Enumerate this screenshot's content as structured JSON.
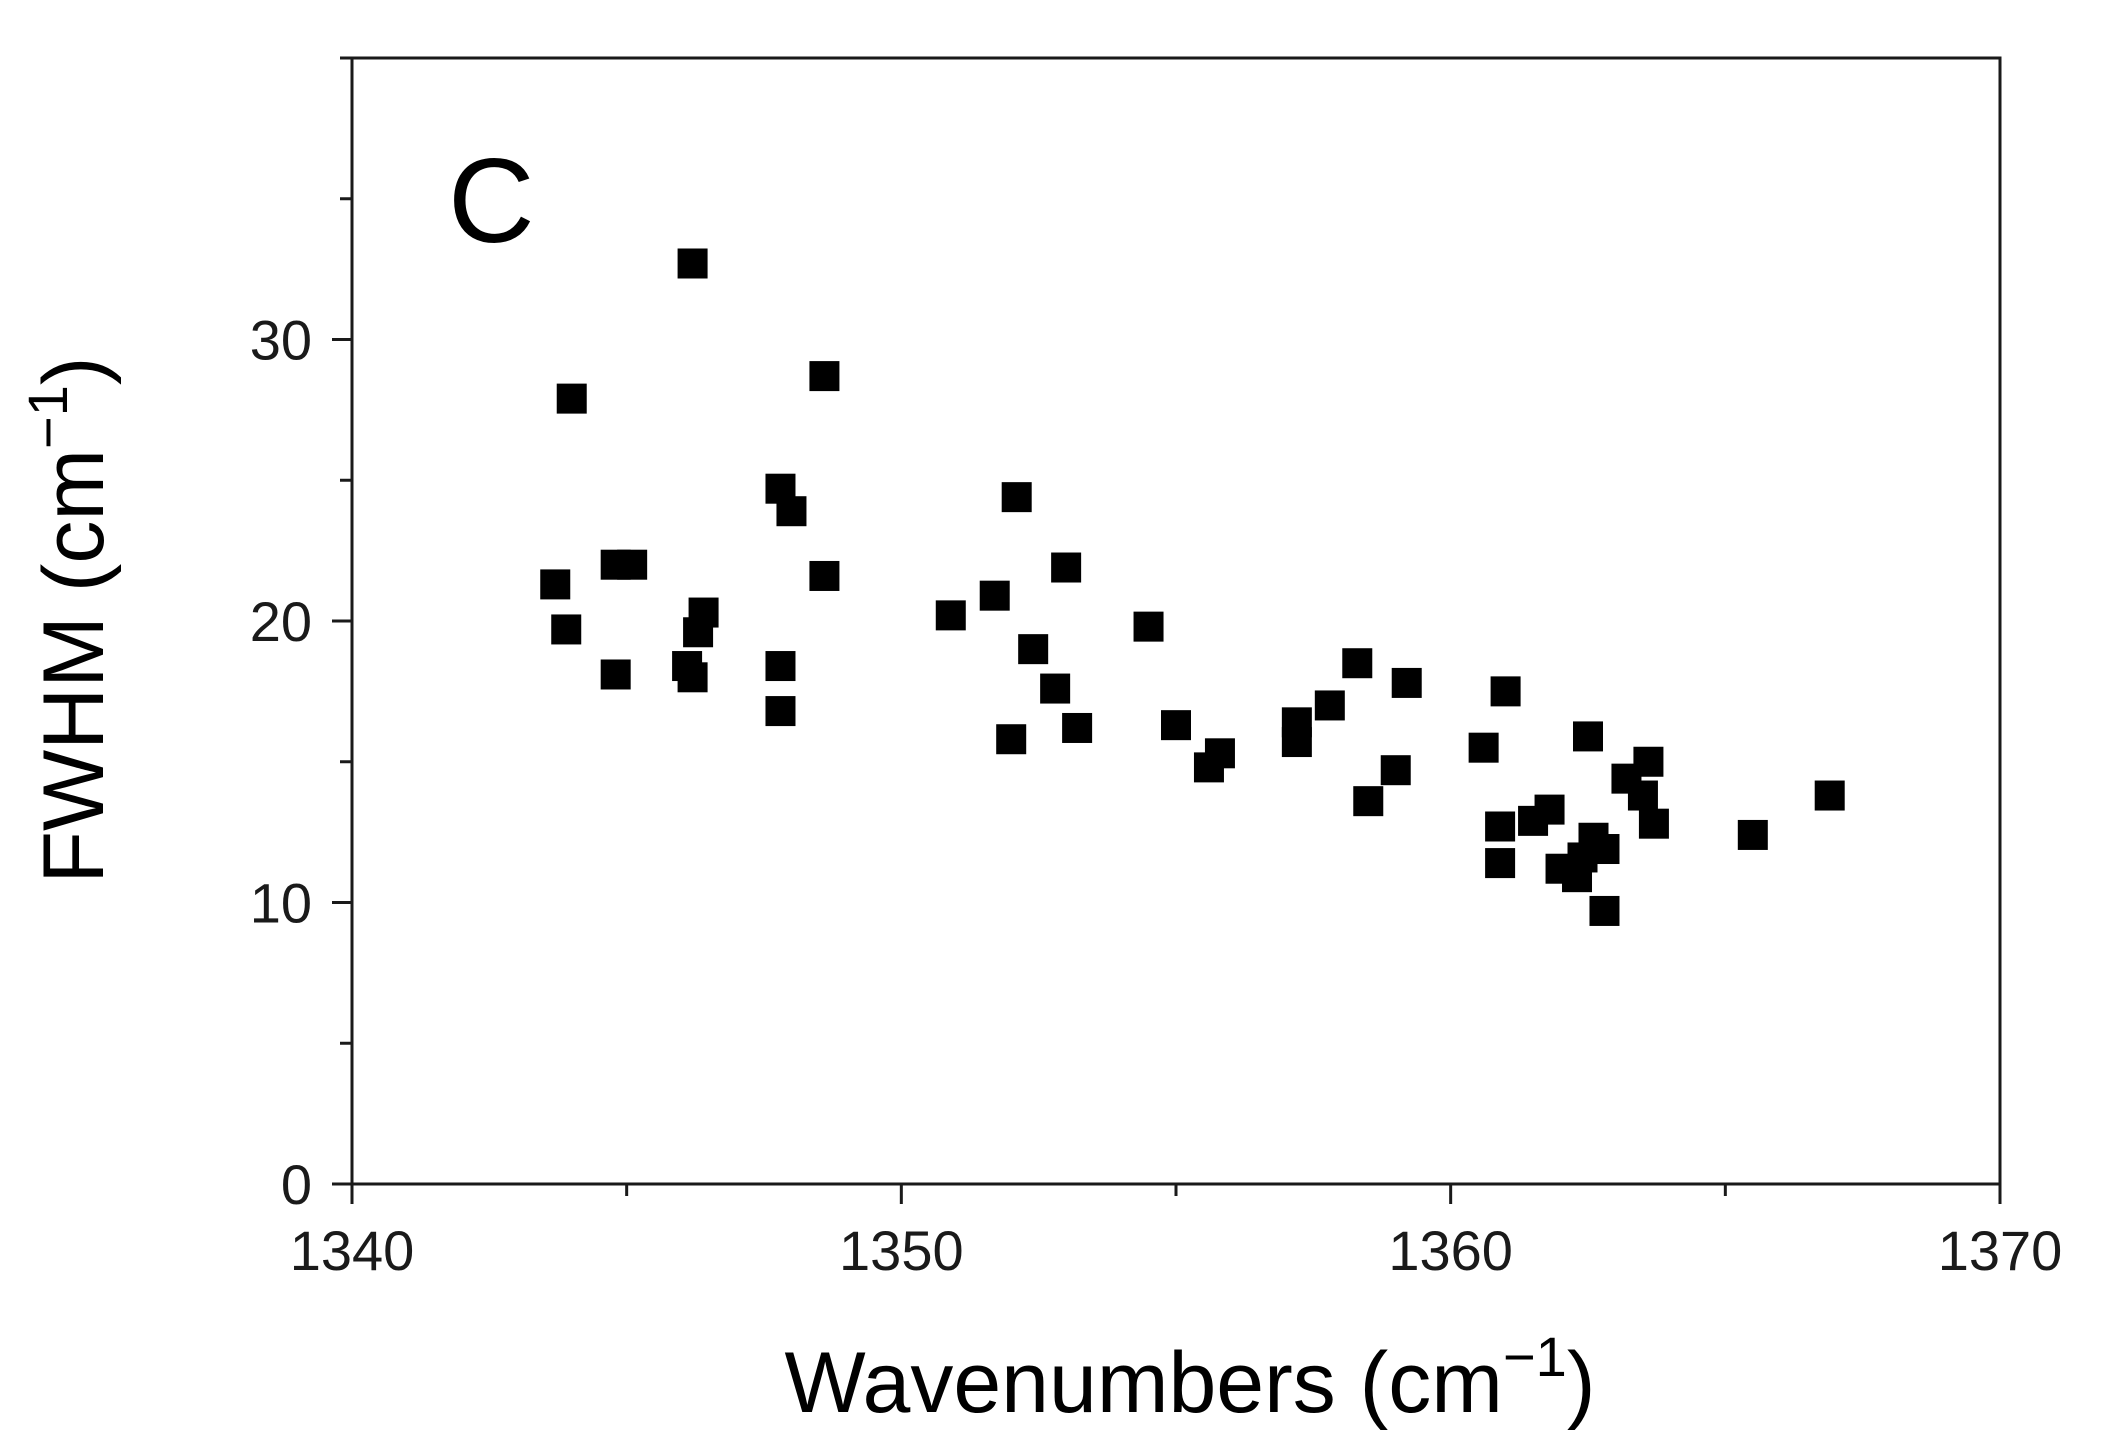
{
  "chart_data": {
    "type": "scatter",
    "panel_label": "C",
    "xlabel": "Wavenumbers (cm",
    "ylabel": "FWHM (cm",
    "unit_exponent": "−1",
    "unit_close": ")",
    "xlim": [
      1340,
      1370
    ],
    "ylim": [
      0,
      40
    ],
    "x_ticks": [
      1340,
      1350,
      1360,
      1370
    ],
    "y_ticks": [
      0,
      10,
      20,
      30
    ],
    "x_minor_step": 5,
    "y_minor_step": 5,
    "marker": "square",
    "marker_color": "#000000",
    "grid": false,
    "points": [
      {
        "x": 1343.7,
        "y": 21.3
      },
      {
        "x": 1344.0,
        "y": 27.9
      },
      {
        "x": 1343.9,
        "y": 19.7
      },
      {
        "x": 1344.8,
        "y": 22.0
      },
      {
        "x": 1345.1,
        "y": 22.0
      },
      {
        "x": 1344.8,
        "y": 18.1
      },
      {
        "x": 1346.2,
        "y": 32.7
      },
      {
        "x": 1346.4,
        "y": 20.3
      },
      {
        "x": 1346.3,
        "y": 19.6
      },
      {
        "x": 1346.1,
        "y": 18.4
      },
      {
        "x": 1346.2,
        "y": 18.0
      },
      {
        "x": 1347.8,
        "y": 24.7
      },
      {
        "x": 1348.0,
        "y": 23.9
      },
      {
        "x": 1347.8,
        "y": 18.4
      },
      {
        "x": 1347.8,
        "y": 16.8
      },
      {
        "x": 1348.6,
        "y": 28.7
      },
      {
        "x": 1348.6,
        "y": 21.6
      },
      {
        "x": 1350.9,
        "y": 20.2
      },
      {
        "x": 1351.7,
        "y": 20.9
      },
      {
        "x": 1352.1,
        "y": 24.4
      },
      {
        "x": 1352.4,
        "y": 19.0
      },
      {
        "x": 1352.0,
        "y": 15.8
      },
      {
        "x": 1352.8,
        "y": 17.6
      },
      {
        "x": 1353.0,
        "y": 21.9
      },
      {
        "x": 1353.2,
        "y": 16.2
      },
      {
        "x": 1354.5,
        "y": 19.8
      },
      {
        "x": 1355.0,
        "y": 16.3
      },
      {
        "x": 1355.6,
        "y": 14.8
      },
      {
        "x": 1355.8,
        "y": 15.3
      },
      {
        "x": 1357.2,
        "y": 16.4
      },
      {
        "x": 1357.2,
        "y": 15.7
      },
      {
        "x": 1357.8,
        "y": 17.0
      },
      {
        "x": 1358.3,
        "y": 18.5
      },
      {
        "x": 1358.5,
        "y": 13.6
      },
      {
        "x": 1359.0,
        "y": 14.7
      },
      {
        "x": 1359.2,
        "y": 17.8
      },
      {
        "x": 1360.6,
        "y": 15.5
      },
      {
        "x": 1361.0,
        "y": 17.5
      },
      {
        "x": 1360.9,
        "y": 12.7
      },
      {
        "x": 1360.9,
        "y": 11.4
      },
      {
        "x": 1361.5,
        "y": 12.9
      },
      {
        "x": 1361.8,
        "y": 13.3
      },
      {
        "x": 1362.0,
        "y": 11.2
      },
      {
        "x": 1362.3,
        "y": 10.9
      },
      {
        "x": 1362.4,
        "y": 11.6
      },
      {
        "x": 1362.5,
        "y": 15.9
      },
      {
        "x": 1362.6,
        "y": 12.3
      },
      {
        "x": 1362.8,
        "y": 11.9
      },
      {
        "x": 1362.8,
        "y": 9.7
      },
      {
        "x": 1363.2,
        "y": 14.4
      },
      {
        "x": 1363.5,
        "y": 13.8
      },
      {
        "x": 1363.6,
        "y": 15.0
      },
      {
        "x": 1363.7,
        "y": 12.8
      },
      {
        "x": 1365.5,
        "y": 12.4
      },
      {
        "x": 1366.9,
        "y": 13.8
      }
    ]
  }
}
